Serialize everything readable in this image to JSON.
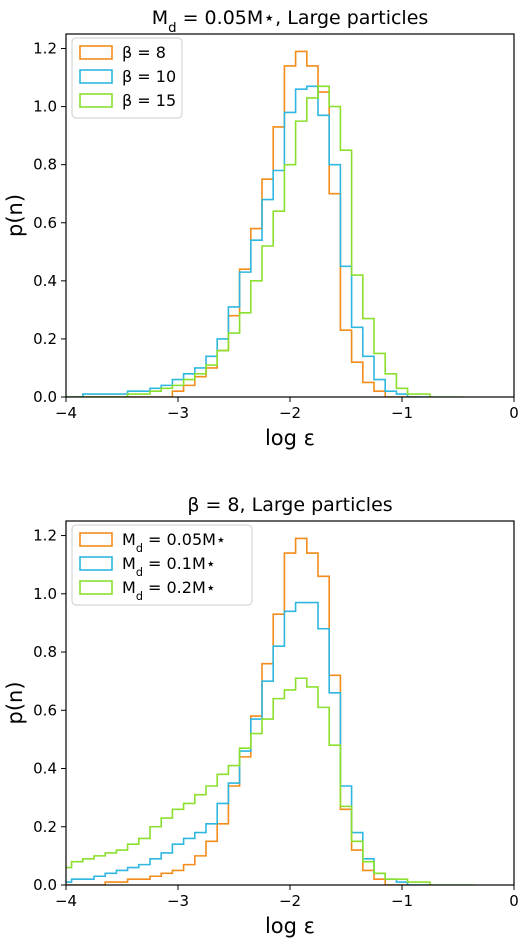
{
  "chart_data": [
    {
      "type": "histogram",
      "title": "M_d = 0.05M⋆, Large particles",
      "xlabel": "log ε",
      "ylabel": "p(n)",
      "xlim": [
        -4,
        0
      ],
      "ylim": [
        0,
        1.25
      ],
      "xticks": [
        -4,
        -3,
        -2,
        -1,
        0
      ],
      "yticks": [
        0.0,
        0.2,
        0.4,
        0.6,
        0.8,
        1.0,
        1.2
      ],
      "legend": "top-left",
      "bin_width": 0.1,
      "series": [
        {
          "name": "β = 8",
          "color": "#F28C1A",
          "x": [
            -4.2,
            -4.1,
            -4.0,
            -3.9,
            -3.8,
            -3.7,
            -3.6,
            -3.5,
            -3.4,
            -3.3,
            -3.2,
            -3.1,
            -3.0,
            -2.9,
            -2.8,
            -2.7,
            -2.6,
            -2.5,
            -2.4,
            -2.3,
            -2.2,
            -2.1,
            -2.0,
            -1.9,
            -1.8,
            -1.7,
            -1.6,
            -1.5,
            -1.4,
            -1.3,
            -1.2,
            -1.1,
            -1.0,
            -0.9
          ],
          "values": [
            0.0,
            0.0,
            0.0,
            0.0,
            0.0,
            0.0,
            0.0,
            0.0,
            0.0,
            0.0,
            0.0,
            0.0,
            0.02,
            0.04,
            0.07,
            0.1,
            0.16,
            0.28,
            0.44,
            0.58,
            0.75,
            0.93,
            1.14,
            1.19,
            1.14,
            1.05,
            0.7,
            0.23,
            0.12,
            0.05,
            0.02,
            0.0,
            0.0,
            0.0
          ]
        },
        {
          "name": "β = 10",
          "color": "#2FB7E0",
          "x": [
            -4.2,
            -4.1,
            -4.0,
            -3.9,
            -3.8,
            -3.7,
            -3.6,
            -3.5,
            -3.4,
            -3.3,
            -3.2,
            -3.1,
            -3.0,
            -2.9,
            -2.8,
            -2.7,
            -2.6,
            -2.5,
            -2.4,
            -2.3,
            -2.2,
            -2.1,
            -2.0,
            -1.9,
            -1.8,
            -1.7,
            -1.6,
            -1.5,
            -1.4,
            -1.3,
            -1.2,
            -1.1,
            -1.0,
            -0.9,
            -0.8
          ],
          "values": [
            0.0,
            0.0,
            0.0,
            0.0,
            0.01,
            0.01,
            0.01,
            0.01,
            0.02,
            0.02,
            0.03,
            0.04,
            0.06,
            0.08,
            0.1,
            0.14,
            0.2,
            0.31,
            0.43,
            0.54,
            0.68,
            0.78,
            0.98,
            1.06,
            1.07,
            0.97,
            0.8,
            0.45,
            0.24,
            0.14,
            0.06,
            0.02,
            0.01,
            0.0,
            0.0
          ]
        },
        {
          "name": "β = 15",
          "color": "#8BE02E",
          "x": [
            -4.2,
            -4.1,
            -4.0,
            -3.9,
            -3.8,
            -3.7,
            -3.6,
            -3.5,
            -3.4,
            -3.3,
            -3.2,
            -3.1,
            -3.0,
            -2.9,
            -2.8,
            -2.7,
            -2.6,
            -2.5,
            -2.4,
            -2.3,
            -2.2,
            -2.1,
            -2.0,
            -1.9,
            -1.8,
            -1.7,
            -1.6,
            -1.5,
            -1.4,
            -1.3,
            -1.2,
            -1.1,
            -1.0,
            -0.9,
            -0.8,
            -0.7,
            -0.6,
            -0.5
          ],
          "values": [
            0.0,
            0.0,
            0.0,
            0.0,
            0.0,
            0.0,
            0.0,
            0.0,
            0.01,
            0.01,
            0.02,
            0.03,
            0.04,
            0.06,
            0.08,
            0.11,
            0.16,
            0.22,
            0.29,
            0.4,
            0.52,
            0.64,
            0.8,
            0.95,
            1.03,
            1.07,
            1.0,
            0.85,
            0.42,
            0.27,
            0.15,
            0.08,
            0.03,
            0.01,
            0.01,
            0.0,
            0.0,
            0.0
          ]
        }
      ]
    },
    {
      "type": "histogram",
      "title": "β = 8, Large particles",
      "xlabel": "log ε",
      "ylabel": "p(n)",
      "xlim": [
        -4,
        0
      ],
      "ylim": [
        0,
        1.25
      ],
      "xticks": [
        -4,
        -3,
        -2,
        -1,
        0
      ],
      "yticks": [
        0.0,
        0.2,
        0.4,
        0.6,
        0.8,
        1.0,
        1.2
      ],
      "legend": "top-left",
      "bin_width": 0.1,
      "series": [
        {
          "name": "M_d = 0.05M⋆",
          "color": "#F28C1A",
          "x": [
            -4.2,
            -4.1,
            -4.0,
            -3.9,
            -3.8,
            -3.7,
            -3.6,
            -3.5,
            -3.4,
            -3.3,
            -3.2,
            -3.1,
            -3.0,
            -2.9,
            -2.8,
            -2.7,
            -2.6,
            -2.5,
            -2.4,
            -2.3,
            -2.2,
            -2.1,
            -2.0,
            -1.9,
            -1.8,
            -1.7,
            -1.6,
            -1.5,
            -1.4,
            -1.3,
            -1.2,
            -1.1,
            -1.0
          ],
          "values": [
            0.0,
            0.0,
            0.0,
            0.0,
            0.0,
            0.0,
            0.01,
            0.01,
            0.02,
            0.02,
            0.03,
            0.04,
            0.05,
            0.07,
            0.1,
            0.15,
            0.21,
            0.34,
            0.44,
            0.58,
            0.76,
            0.93,
            1.14,
            1.19,
            1.14,
            1.06,
            0.72,
            0.26,
            0.12,
            0.05,
            0.02,
            0.0,
            0.0
          ]
        },
        {
          "name": "M_d = 0.1M⋆",
          "color": "#2FB7E0",
          "x": [
            -4.2,
            -4.1,
            -4.0,
            -3.9,
            -3.8,
            -3.7,
            -3.6,
            -3.5,
            -3.4,
            -3.3,
            -3.2,
            -3.1,
            -3.0,
            -2.9,
            -2.8,
            -2.7,
            -2.6,
            -2.5,
            -2.4,
            -2.3,
            -2.2,
            -2.1,
            -2.0,
            -1.9,
            -1.8,
            -1.7,
            -1.6,
            -1.5,
            -1.4,
            -1.3,
            -1.2,
            -1.1,
            -1.0,
            -0.9,
            -0.8
          ],
          "values": [
            0.0,
            0.0,
            0.01,
            0.02,
            0.02,
            0.03,
            0.04,
            0.05,
            0.06,
            0.07,
            0.09,
            0.11,
            0.14,
            0.16,
            0.18,
            0.21,
            0.28,
            0.35,
            0.46,
            0.57,
            0.7,
            0.82,
            0.94,
            0.97,
            0.97,
            0.88,
            0.66,
            0.34,
            0.18,
            0.09,
            0.04,
            0.02,
            0.01,
            0.0,
            0.0
          ]
        },
        {
          "name": "M_d = 0.2M⋆",
          "color": "#8BE02E",
          "x": [
            -4.2,
            -4.1,
            -4.0,
            -3.9,
            -3.8,
            -3.7,
            -3.6,
            -3.5,
            -3.4,
            -3.3,
            -3.2,
            -3.1,
            -3.0,
            -2.9,
            -2.8,
            -2.7,
            -2.6,
            -2.5,
            -2.4,
            -2.3,
            -2.2,
            -2.1,
            -2.0,
            -1.9,
            -1.8,
            -1.7,
            -1.6,
            -1.5,
            -1.4,
            -1.3,
            -1.2,
            -1.1,
            -1.0,
            -0.9,
            -0.8,
            -0.7,
            -0.6,
            -0.5,
            -0.4
          ],
          "values": [
            0.0,
            0.0,
            0.06,
            0.08,
            0.09,
            0.1,
            0.11,
            0.12,
            0.14,
            0.16,
            0.2,
            0.23,
            0.26,
            0.28,
            0.31,
            0.34,
            0.38,
            0.41,
            0.47,
            0.52,
            0.57,
            0.64,
            0.67,
            0.71,
            0.68,
            0.61,
            0.48,
            0.27,
            0.15,
            0.08,
            0.04,
            0.02,
            0.02,
            0.01,
            0.01,
            0.0,
            0.0,
            0.0,
            0.0
          ]
        }
      ]
    }
  ]
}
